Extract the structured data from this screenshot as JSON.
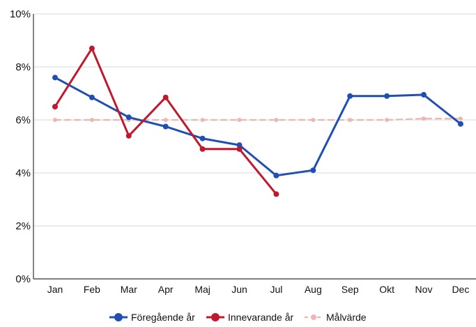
{
  "chart_data": {
    "type": "line",
    "title": "",
    "xlabel": "",
    "ylabel": "",
    "categories": [
      "Jan",
      "Feb",
      "Mar",
      "Apr",
      "Maj",
      "Jun",
      "Jul",
      "Aug",
      "Sep",
      "Okt",
      "Nov",
      "Dec"
    ],
    "y_ticks": [
      "0%",
      "2%",
      "4%",
      "6%",
      "8%",
      "10%"
    ],
    "ylim": [
      0,
      10
    ],
    "grid": true,
    "legend_position": "bottom",
    "series": [
      {
        "name": "Föregående år",
        "color": "#1f4fb3",
        "dashed": false,
        "values": [
          7.6,
          6.85,
          6.1,
          5.75,
          5.3,
          5.05,
          3.9,
          4.1,
          6.9,
          6.9,
          6.95,
          5.85
        ]
      },
      {
        "name": "Innevarande år",
        "color": "#c0182d",
        "dashed": false,
        "values": [
          6.5,
          8.7,
          5.4,
          6.85,
          4.9,
          4.9,
          3.2,
          null,
          null,
          null,
          null,
          null
        ]
      },
      {
        "name": "Målvärde",
        "color": "#efb6b1",
        "dashed": true,
        "values": [
          6,
          6,
          6,
          6,
          6,
          6,
          6,
          6,
          6,
          6,
          6.05,
          6.05
        ]
      }
    ]
  }
}
